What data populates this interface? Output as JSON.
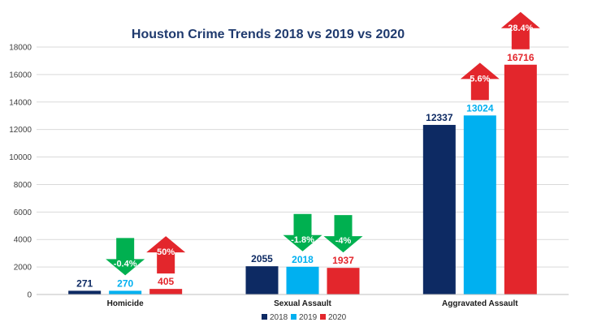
{
  "chart_data": {
    "type": "bar",
    "title": "Houston Crime Trends 2018 vs 2019 vs 2020",
    "xlabel": "",
    "ylabel": "",
    "ylim": [
      0,
      18000
    ],
    "yticks": [
      "0",
      "2000",
      "4000",
      "6000",
      "8000",
      "10000",
      "12000",
      "14000",
      "16000",
      "18000"
    ],
    "grid": true,
    "legend_position": "bottom-center",
    "categories": [
      "Homicide",
      "Sexual Assault",
      "Aggravated Assault"
    ],
    "series": [
      {
        "name": "2018",
        "color": "#0d2a63",
        "values": [
          271,
          2055,
          12337
        ],
        "labels": [
          "271",
          "2055",
          "12337"
        ]
      },
      {
        "name": "2019",
        "color": "#00b0f0",
        "values": [
          270,
          2018,
          13024
        ],
        "labels": [
          "270",
          "2018",
          "13024"
        ]
      },
      {
        "name": "2020",
        "color": "#e3262c",
        "values": [
          405,
          1937,
          16716
        ],
        "labels": [
          "405",
          "1937",
          "16716"
        ]
      }
    ],
    "annotations": [
      {
        "category": 0,
        "series": 1,
        "direction": "down",
        "text": "-0.4%",
        "color": "#00b050"
      },
      {
        "category": 0,
        "series": 2,
        "direction": "up",
        "text": "50%",
        "color": "#e3262c"
      },
      {
        "category": 1,
        "series": 1,
        "direction": "down",
        "text": "-1.8%",
        "color": "#00b050"
      },
      {
        "category": 1,
        "series": 2,
        "direction": "down",
        "text": "-4%",
        "color": "#00b050"
      },
      {
        "category": 2,
        "series": 1,
        "direction": "up",
        "text": "5.6%",
        "color": "#e3262c"
      },
      {
        "category": 2,
        "series": 2,
        "direction": "up",
        "text": "28.4%",
        "color": "#e3262c"
      }
    ]
  }
}
